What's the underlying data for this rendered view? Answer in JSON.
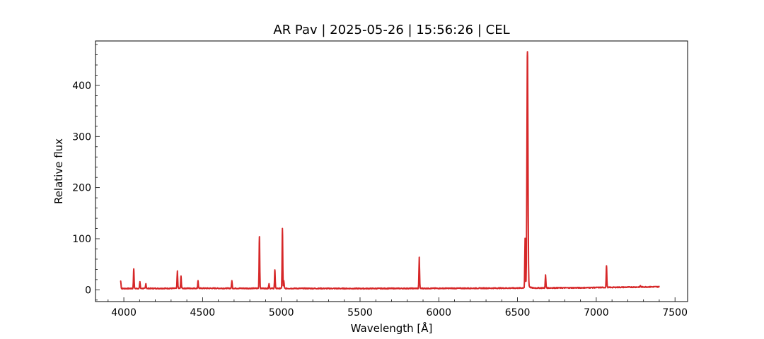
{
  "chart_data": {
    "type": "line",
    "title": "AR Pav | 2025-05-26 | 15:56:26 | CEL",
    "xlabel": "Wavelength [Å]",
    "ylabel": "Relative flux",
    "xlim": [
      3820,
      7580
    ],
    "ylim": [
      -23,
      487
    ],
    "x_ticks": [
      4000,
      4500,
      5000,
      5500,
      6000,
      6500,
      7000,
      7500
    ],
    "y_ticks": [
      0,
      100,
      200,
      300,
      400
    ],
    "x_minor_step": 100,
    "y_minor_step": 20,
    "grid": false,
    "legend": "none",
    "series": [
      {
        "color": "#d62728",
        "x_range": [
          3980,
          7400
        ],
        "baseline": [
          [
            3980,
            2.5
          ],
          [
            4500,
            3.0
          ],
          [
            5500,
            2.5
          ],
          [
            6200,
            3.0
          ],
          [
            6900,
            4.0
          ],
          [
            7400,
            6.0
          ]
        ],
        "emission_lines": [
          {
            "x": 3980,
            "y": 17
          },
          {
            "x": 4063,
            "y": 41
          },
          {
            "x": 4102,
            "y": 16
          },
          {
            "x": 4140,
            "y": 12
          },
          {
            "x": 4340,
            "y": 37
          },
          {
            "x": 4363,
            "y": 27
          },
          {
            "x": 4471,
            "y": 18
          },
          {
            "x": 4686,
            "y": 18
          },
          {
            "x": 4861,
            "y": 104
          },
          {
            "x": 4922,
            "y": 12
          },
          {
            "x": 4959,
            "y": 39
          },
          {
            "x": 5007,
            "y": 120
          },
          {
            "x": 5016,
            "y": 17
          },
          {
            "x": 5876,
            "y": 63
          },
          {
            "x": 6548,
            "y": 100
          },
          {
            "x": 6563,
            "y": 466
          },
          {
            "x": 6678,
            "y": 29
          },
          {
            "x": 7065,
            "y": 47
          },
          {
            "x": 7281,
            "y": 8
          }
        ]
      }
    ]
  }
}
